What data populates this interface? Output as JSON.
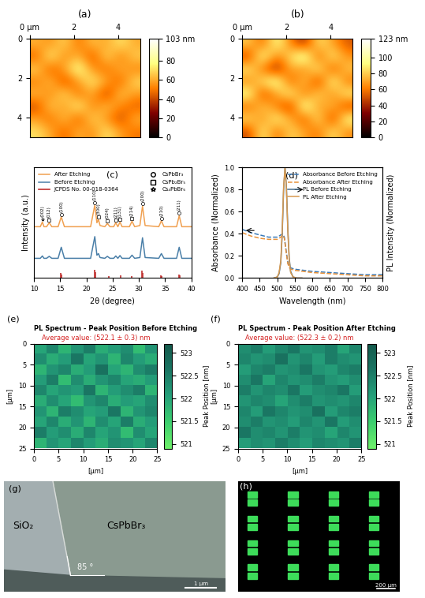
{
  "chart_data": [
    {
      "type": "heatmap",
      "panel_label": "(a)",
      "xlim": [
        0,
        5
      ],
      "ylim": [
        5,
        0
      ],
      "xticks": [
        {
          "value": 0,
          "label": "0 µm"
        },
        2,
        4
      ],
      "yticks": [
        0,
        2,
        4
      ],
      "color_range": [
        0,
        103
      ],
      "color_ticks": [
        0,
        20,
        40,
        60,
        80,
        {
          "value": 103,
          "label": "103 nm"
        }
      ],
      "cells": [
        [
          62,
          55,
          70,
          48,
          66,
          58,
          74,
          60
        ],
        [
          45,
          78,
          52,
          64,
          40,
          72,
          50,
          68
        ],
        [
          70,
          42,
          60,
          85,
          55,
          47,
          63,
          52
        ],
        [
          50,
          66,
          38,
          58,
          76,
          60,
          44,
          71
        ],
        [
          64,
          52,
          73,
          46,
          62,
          35,
          68,
          57
        ],
        [
          40,
          69,
          55,
          80,
          50,
          66,
          53,
          45
        ],
        [
          58,
          47,
          67,
          42,
          71,
          56,
          39,
          62
        ],
        [
          72,
          60,
          45,
          63,
          52,
          74,
          58,
          49
        ]
      ]
    },
    {
      "type": "heatmap",
      "panel_label": "(b)",
      "xlim": [
        0,
        5
      ],
      "ylim": [
        5,
        0
      ],
      "xticks": [
        {
          "value": 0,
          "label": "0 µm"
        },
        2,
        4
      ],
      "yticks": [
        0,
        2,
        4
      ],
      "color_range": [
        0,
        123
      ],
      "color_ticks": [
        0,
        20,
        40,
        60,
        80,
        100,
        {
          "value": 123,
          "label": "123 nm"
        }
      ],
      "cells": [
        [
          80,
          55,
          98,
          62,
          40,
          88,
          70,
          52
        ],
        [
          45,
          102,
          60,
          85,
          110,
          50,
          92,
          66
        ],
        [
          90,
          58,
          35,
          75,
          62,
          95,
          48,
          80
        ],
        [
          62,
          88,
          105,
          50,
          82,
          40,
          100,
          58
        ],
        [
          100,
          45,
          70,
          96,
          55,
          86,
          62,
          92
        ],
        [
          55,
          82,
          60,
          40,
          108,
          65,
          78,
          45
        ],
        [
          86,
          64,
          95,
          72,
          50,
          90,
          42,
          98
        ],
        [
          48,
          92,
          56,
          84,
          70,
          58,
          88,
          64
        ]
      ]
    },
    {
      "type": "line",
      "panel_label": "(c)",
      "x_label": "2θ (degree)",
      "y_label": "Intensity (a.u.)",
      "xlim": [
        10,
        40
      ],
      "xticks": [
        10,
        15,
        20,
        25,
        30,
        35,
        40
      ],
      "ylim": [
        0,
        2.8
      ],
      "tick_labels": "x",
      "legend": "upper left",
      "x": [
        10,
        11.2,
        11.6,
        11.9,
        12.4,
        12.9,
        13.4,
        14.6,
        15.2,
        15.8,
        20.8,
        21.6,
        22.0,
        22.3,
        22.6,
        23.5,
        24.0,
        24.5,
        25.2,
        25.6,
        26.0,
        26.4,
        26.8,
        28.2,
        28.7,
        29.2,
        30.2,
        30.7,
        31.2,
        33.8,
        34.3,
        34.8,
        37.2,
        37.7,
        38.2,
        40
      ],
      "series": [
        {
          "name": "After Etching",
          "color": "#f0a050",
          "line_style": "solid",
          "values": [
            1.3,
            1.3,
            1.42,
            1.3,
            1.3,
            1.4,
            1.3,
            1.3,
            1.55,
            1.3,
            1.3,
            1.85,
            1.4,
            1.48,
            1.33,
            1.3,
            1.38,
            1.3,
            1.3,
            1.4,
            1.3,
            1.42,
            1.3,
            1.3,
            1.44,
            1.3,
            1.33,
            1.82,
            1.33,
            1.3,
            1.45,
            1.3,
            1.3,
            1.58,
            1.3,
            1.3
          ]
        },
        {
          "name": "Before Etching",
          "color": "#4a7fa8",
          "line_style": "solid",
          "values": [
            0.5,
            0.5,
            0.56,
            0.5,
            0.5,
            0.55,
            0.5,
            0.5,
            0.78,
            0.5,
            0.5,
            1.05,
            0.58,
            0.62,
            0.52,
            0.5,
            0.55,
            0.5,
            0.5,
            0.56,
            0.5,
            0.57,
            0.5,
            0.5,
            0.58,
            0.5,
            0.52,
            1.02,
            0.52,
            0.5,
            0.62,
            0.5,
            0.5,
            0.78,
            0.5,
            0.5
          ]
        }
      ],
      "reference": {
        "name": "JCPDS No. 00-018-0364",
        "color": "#c0302f",
        "x": [
          15.1,
          15.3,
          21.5,
          21.7,
          24.3,
          26.5,
          28.6,
          30.6,
          30.8,
          34.2,
          34.4,
          37.6,
          37.8
        ],
        "values": [
          0.12,
          0.08,
          0.2,
          0.14,
          0.05,
          0.06,
          0.05,
          0.18,
          0.12,
          0.06,
          0.04,
          0.08,
          0.06
        ]
      },
      "phases": [
        {
          "name": "CsPbBr₃",
          "marker": "circle"
        },
        {
          "name": "CsPb₂Br₅",
          "marker": "square"
        },
        {
          "name": "Cs₄PbBr₆",
          "marker": "star"
        }
      ],
      "peaks": [
        {
          "x": 11.6,
          "label": "(002)",
          "phase": "Cs₄PbBr₆"
        },
        {
          "x": 12.9,
          "label": "(012)",
          "phase": "CsPb₂Br₅"
        },
        {
          "x": 15.2,
          "label": "(100)",
          "phase": "CsPbBr₃"
        },
        {
          "x": 21.6,
          "label": "(110)",
          "phase": "CsPbBr₃"
        },
        {
          "x": 22.3,
          "label": "(300)",
          "phase": "CsPb₂Br₅"
        },
        {
          "x": 24.0,
          "label": "(024)",
          "phase": "CsPb₂Br₅"
        },
        {
          "x": 25.6,
          "label": "(211)",
          "phase": "CsPb₂Br₅"
        },
        {
          "x": 26.4,
          "label": "(131)",
          "phase": "CsPb₂Br₅"
        },
        {
          "x": 28.7,
          "label": "(214)",
          "phase": "CsPb₂Br₅"
        },
        {
          "x": 30.7,
          "label": "(200)",
          "phase": "CsPbBr₃"
        },
        {
          "x": 34.3,
          "label": "(210)",
          "phase": "CsPbBr₃"
        },
        {
          "x": 37.7,
          "label": "(211)",
          "phase": "CsPbBr₃"
        }
      ]
    },
    {
      "type": "line",
      "panel_label": "(d)",
      "x_label": "Wavelength (nm)",
      "y_label": "Absorbance (Normalized)",
      "y2_label": "PL Intensity (Normalized)",
      "xlim": [
        400,
        800
      ],
      "xticks": [
        400,
        450,
        500,
        550,
        600,
        650,
        700,
        750,
        800
      ],
      "ylim": [
        0,
        1.0
      ],
      "yticks": [
        {
          "value": 0,
          "label": "0.0"
        },
        {
          "value": 0.2,
          "label": "0.2"
        },
        {
          "value": 0.4,
          "label": "0.4"
        },
        {
          "value": 0.6,
          "label": "0.6"
        },
        {
          "value": 0.8,
          "label": "0.8"
        },
        {
          "value": 1.0,
          "label": "1.0"
        }
      ],
      "y2lim": [
        0,
        1.0
      ],
      "y2ticks": [],
      "legend": "upper right",
      "series": [
        {
          "name": "Absorbance Before Etching",
          "color": "#3a7ab8",
          "line_style": "dashed",
          "x": [
            400,
            425,
            450,
            475,
            500,
            510,
            515,
            520,
            525,
            530,
            535,
            540,
            550,
            575,
            600,
            650,
            700,
            750,
            800
          ],
          "values": [
            0.44,
            0.41,
            0.39,
            0.37,
            0.37,
            0.39,
            0.4,
            0.37,
            0.25,
            0.14,
            0.1,
            0.09,
            0.08,
            0.07,
            0.06,
            0.05,
            0.04,
            0.03,
            0.03
          ]
        },
        {
          "name": "Absorbance After Etching",
          "color": "#e8923a",
          "line_style": "dashed",
          "x": [
            400,
            425,
            450,
            475,
            500,
            510,
            515,
            520,
            525,
            530,
            535,
            540,
            550,
            575,
            600,
            650,
            700,
            750,
            800
          ],
          "values": [
            0.41,
            0.38,
            0.36,
            0.35,
            0.35,
            0.37,
            0.39,
            0.36,
            0.24,
            0.13,
            0.09,
            0.08,
            0.07,
            0.06,
            0.05,
            0.04,
            0.03,
            0.02,
            0.02
          ]
        },
        {
          "name": "PL Before Etching",
          "color": "#4a6f8a",
          "line_style": "solid",
          "axis": "y2",
          "x": [
            490,
            500,
            505,
            510,
            514,
            518,
            522,
            526,
            530,
            534,
            538,
            545,
            555,
            570
          ],
          "values": [
            0,
            0.01,
            0.04,
            0.14,
            0.4,
            0.8,
            1.0,
            0.82,
            0.45,
            0.18,
            0.06,
            0.01,
            0,
            0
          ]
        },
        {
          "name": "PL After Etching",
          "color": "#d89a50",
          "line_style": "solid",
          "axis": "y2",
          "x": [
            490,
            500,
            505,
            510,
            514,
            518,
            522,
            526,
            530,
            534,
            538,
            545,
            555,
            570
          ],
          "values": [
            0,
            0.01,
            0.05,
            0.16,
            0.43,
            0.83,
            1.0,
            0.8,
            0.42,
            0.16,
            0.05,
            0.01,
            0,
            0
          ]
        }
      ]
    },
    {
      "type": "heatmap",
      "panel_label": "(e)",
      "title": "PL Spectrum - Peak Position Before Etching",
      "subtitle": "Average value: (522.1 ± 0.3) nm",
      "x_label": "[µm]",
      "y_label": "[µm]",
      "colorbar_label": "Peak Position [nm]",
      "xlim": [
        0,
        25
      ],
      "ylim": [
        25,
        0
      ],
      "xticks": [
        0,
        5,
        10,
        15,
        20,
        25
      ],
      "yticks": [
        0,
        5,
        10,
        15,
        20,
        25
      ],
      "color_range": [
        520.9,
        523.2
      ],
      "color_ticks": [
        521,
        521.5,
        522,
        522.5,
        523
      ],
      "cells": [
        [
          522.0,
          522.4,
          521.8,
          522.2,
          522.5,
          521.9,
          522.1,
          522.3,
          521.7,
          522.2
        ],
        [
          522.3,
          521.9,
          522.1,
          522.6,
          522.0,
          522.2,
          521.8,
          522.4,
          522.1,
          521.9
        ],
        [
          521.8,
          522.2,
          522.4,
          521.9,
          522.1,
          522.7,
          522.0,
          521.8,
          522.3,
          522.5
        ],
        [
          522.1,
          522.5,
          521.7,
          522.3,
          521.9,
          522.2,
          522.4,
          522.0,
          521.9,
          522.1
        ],
        [
          522.4,
          522.0,
          522.2,
          522.1,
          522.6,
          521.8,
          522.1,
          522.3,
          522.5,
          521.8
        ],
        [
          521.9,
          522.3,
          522.0,
          521.7,
          522.2,
          522.4,
          521.9,
          522.1,
          522.0,
          522.3
        ],
        [
          522.2,
          521.8,
          522.5,
          522.3,
          522.0,
          522.1,
          522.6,
          521.8,
          522.2,
          522.4
        ],
        [
          522.0,
          522.4,
          521.9,
          522.2,
          521.8,
          522.3,
          522.0,
          522.5,
          521.9,
          522.1
        ],
        [
          522.5,
          522.1,
          522.3,
          521.9,
          522.4,
          522.0,
          522.2,
          521.7,
          522.3,
          522.0
        ],
        [
          521.8,
          522.2,
          522.0,
          522.4,
          522.1,
          521.9,
          522.3,
          522.2,
          522.0,
          522.4
        ]
      ]
    },
    {
      "type": "heatmap",
      "panel_label": "(f)",
      "title": "PL Spectrum - Peak Position After Etching",
      "subtitle": "Average value: (522.3 ± 0.2) nm",
      "x_label": "[µm]",
      "y_label": "[µm]",
      "colorbar_label": "Peak Position [nm]",
      "xlim": [
        0,
        25
      ],
      "ylim": [
        25,
        0
      ],
      "xticks": [
        0,
        5,
        10,
        15,
        20,
        25
      ],
      "yticks": [
        0,
        5,
        10,
        15,
        20,
        25
      ],
      "color_range": [
        520.9,
        523.2
      ],
      "color_ticks": [
        521,
        521.5,
        522,
        522.5,
        523
      ],
      "cells": [
        [
          522.3,
          522.5,
          522.1,
          522.4,
          522.6,
          522.2,
          522.3,
          522.5,
          522.0,
          522.4
        ],
        [
          522.4,
          522.2,
          522.3,
          522.7,
          522.2,
          522.4,
          522.1,
          522.5,
          522.3,
          522.2
        ],
        [
          522.1,
          522.4,
          522.5,
          522.2,
          522.3,
          522.6,
          522.2,
          522.1,
          522.4,
          522.5
        ],
        [
          522.3,
          522.6,
          522.0,
          522.4,
          522.2,
          522.3,
          522.5,
          522.2,
          522.1,
          522.3
        ],
        [
          522.5,
          522.2,
          522.4,
          522.3,
          522.6,
          522.1,
          522.3,
          522.4,
          522.6,
          522.1
        ],
        [
          522.2,
          522.4,
          522.3,
          522.0,
          522.3,
          522.5,
          522.2,
          522.3,
          522.2,
          522.4
        ],
        [
          522.4,
          522.1,
          522.6,
          522.4,
          522.2,
          522.3,
          522.7,
          522.1,
          522.4,
          522.5
        ],
        [
          522.3,
          522.5,
          522.2,
          522.3,
          522.1,
          522.4,
          522.2,
          522.6,
          522.1,
          522.3
        ],
        [
          522.6,
          522.3,
          522.4,
          522.2,
          522.5,
          522.2,
          522.3,
          522.0,
          522.4,
          522.2
        ],
        [
          522.1,
          522.3,
          522.2,
          522.5,
          522.3,
          522.1,
          522.4,
          522.3,
          522.2,
          522.5
        ]
      ]
    },
    {
      "type": "image",
      "panel_label": "(g)",
      "labels": [
        "SiO₂",
        "CsPbBr₃"
      ],
      "angle_label": "85 °",
      "scale_bar": "1 µm"
    },
    {
      "type": "image",
      "panel_label": "(h)",
      "scale_bar": "200 µm"
    }
  ]
}
